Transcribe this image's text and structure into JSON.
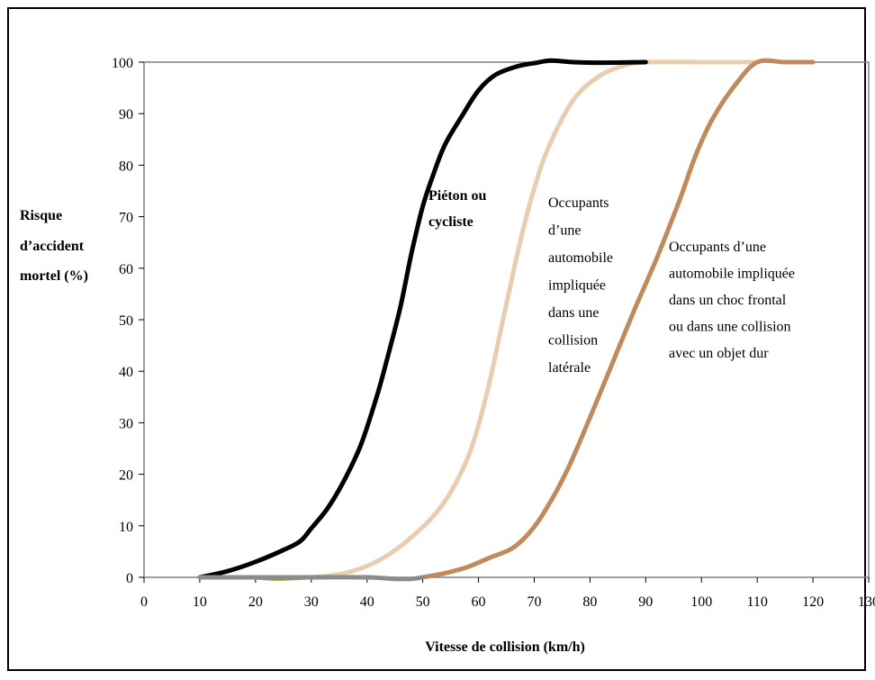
{
  "chart_data": {
    "type": "line",
    "xlabel": "Vitesse de collision (km/h)",
    "ylabel_lines": [
      "Risque",
      "d’accident",
      "mortel (%)"
    ],
    "xlim": [
      0,
      130
    ],
    "ylim": [
      0,
      100
    ],
    "x_ticks": [
      0,
      10,
      20,
      30,
      40,
      50,
      60,
      70,
      80,
      90,
      100,
      110,
      120,
      130
    ],
    "y_ticks": [
      0,
      10,
      20,
      30,
      40,
      50,
      60,
      70,
      80,
      90,
      100
    ],
    "grid": false,
    "legend": "none (inline annotations)",
    "series": [
      {
        "id": "pedestrian",
        "color": "#000000",
        "label_lines": [
          "Piéton ou",
          "cycliste"
        ],
        "label_bold": true,
        "points": [
          [
            10,
            0
          ],
          [
            15,
            1.2
          ],
          [
            20,
            3
          ],
          [
            25,
            5.3
          ],
          [
            28,
            7
          ],
          [
            30,
            9.5
          ],
          [
            33,
            13.5
          ],
          [
            36,
            19
          ],
          [
            39,
            26
          ],
          [
            42,
            36
          ],
          [
            44,
            44
          ],
          [
            46,
            52.5
          ],
          [
            48,
            63
          ],
          [
            50,
            72
          ],
          [
            52,
            78.5
          ],
          [
            54,
            84
          ],
          [
            57,
            89.5
          ],
          [
            60,
            94.5
          ],
          [
            63,
            97.5
          ],
          [
            67,
            99.2
          ],
          [
            70,
            99.8
          ],
          [
            73,
            100.3
          ],
          [
            77,
            100
          ],
          [
            82,
            99.9
          ],
          [
            90,
            100
          ]
        ]
      },
      {
        "id": "side",
        "color": "#e8cdb0",
        "label_lines": [
          "Occupants",
          "d’une",
          "automobile",
          "impliquée",
          "dans une",
          "collision",
          "latérale"
        ],
        "label_bold": false,
        "points": [
          [
            30,
            0
          ],
          [
            33,
            0.3
          ],
          [
            36,
            0.8
          ],
          [
            40,
            2.2
          ],
          [
            44,
            4.5
          ],
          [
            48,
            7.8
          ],
          [
            52,
            12
          ],
          [
            55,
            16.5
          ],
          [
            58,
            23
          ],
          [
            60,
            29.5
          ],
          [
            62,
            38
          ],
          [
            64,
            48
          ],
          [
            66,
            58
          ],
          [
            68,
            67.5
          ],
          [
            70,
            75.5
          ],
          [
            72,
            82
          ],
          [
            75,
            89
          ],
          [
            78,
            94
          ],
          [
            82,
            97.5
          ],
          [
            86,
            99.3
          ],
          [
            90,
            100
          ],
          [
            100,
            100
          ],
          [
            110,
            100
          ]
        ]
      },
      {
        "id": "frontal",
        "color": "#c08a5c",
        "label_lines": [
          "Occupants d’une",
          "automobile impliquée",
          "dans un choc frontal",
          "ou dans une collision",
          "avec un objet dur"
        ],
        "label_bold": false,
        "points": [
          [
            50,
            0
          ],
          [
            54,
            0.8
          ],
          [
            58,
            2
          ],
          [
            62,
            3.8
          ],
          [
            66,
            5.6
          ],
          [
            69,
            8.5
          ],
          [
            72,
            13
          ],
          [
            76,
            21
          ],
          [
            80,
            31
          ],
          [
            84,
            41.5
          ],
          [
            88,
            52
          ],
          [
            92,
            62
          ],
          [
            96,
            73
          ],
          [
            99,
            82
          ],
          [
            102,
            89
          ],
          [
            106,
            95.5
          ],
          [
            110,
            100
          ],
          [
            115,
            100
          ],
          [
            120,
            100
          ]
        ]
      },
      {
        "id": "baseline",
        "color": "#8c8c8c",
        "points": [
          [
            10,
            0
          ],
          [
            20,
            0
          ],
          [
            30,
            0
          ],
          [
            40,
            0
          ],
          [
            45,
            -0.3
          ],
          [
            48,
            -0.3
          ],
          [
            50,
            0
          ]
        ]
      },
      {
        "id": "olive-baseline",
        "color": "#9a9a30",
        "points": [
          [
            19,
            -0.1
          ],
          [
            24,
            -0.4
          ],
          [
            29,
            -0.2
          ]
        ]
      }
    ]
  }
}
